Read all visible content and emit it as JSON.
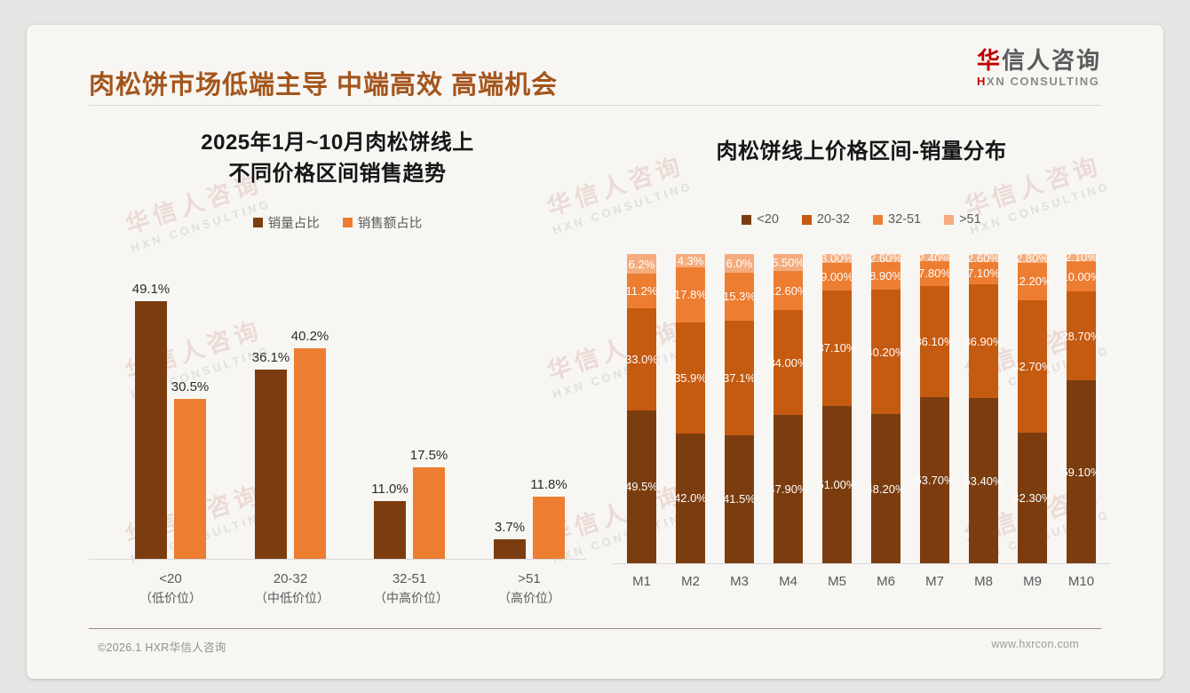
{
  "page": {
    "title": "肉松饼市场低端主导 中端高效 高端机会",
    "logo": {
      "cn_red": "华",
      "cn_rest": "信人咨询",
      "en_red": "H",
      "en_rest": "XN CONSULTING"
    },
    "watermark": {
      "line1": "华信人咨询",
      "line2": "HXN CONSULTING"
    },
    "footer": {
      "copyright": "©2026.1 HXR华信人咨询",
      "website": "www.hxrcon.com"
    }
  },
  "colors": {
    "title_accent": "#A4551C",
    "logo_red": "#C00000",
    "series_dark_brown": "#7B3D10",
    "series_burnt_orange": "#C55A11",
    "series_orange": "#ED7D31",
    "series_pale_orange": "#F4AC7E"
  },
  "chart_data": [
    {
      "type": "bar",
      "title_lines": [
        "2025年1月~10月肉松饼线上",
        "不同价格区间销售趋势"
      ],
      "categories": [
        [
          "<20",
          "（低价位）"
        ],
        [
          "20-32",
          "（中低价位）"
        ],
        [
          "32-51",
          "（中高价位）"
        ],
        [
          ">51",
          "（高价位）"
        ]
      ],
      "series": [
        {
          "name": "销量占比",
          "color": "#7B3D10",
          "values": [
            49.1,
            36.1,
            11.0,
            3.7
          ],
          "labels": [
            "49.1%",
            "36.1%",
            "11.0%",
            "3.7%"
          ]
        },
        {
          "name": "销售额占比",
          "color": "#ED7D31",
          "values": [
            30.5,
            40.2,
            17.5,
            11.8
          ],
          "labels": [
            "30.5%",
            "40.2%",
            "17.5%",
            "11.8%"
          ]
        }
      ],
      "ylim": [
        0,
        50
      ],
      "grid": false,
      "legend_position": "top"
    },
    {
      "type": "bar",
      "stacked": true,
      "title": "肉松饼线上价格区间-销量分布",
      "categories": [
        "M1",
        "M2",
        "M3",
        "M4",
        "M5",
        "M6",
        "M7",
        "M8",
        "M9",
        "M10"
      ],
      "series": [
        {
          "name": "<20",
          "color": "#7B3D10",
          "values": [
            49.5,
            42.0,
            41.5,
            47.9,
            51.0,
            48.2,
            53.7,
            53.4,
            42.3,
            59.1
          ],
          "labels": [
            "49.5%",
            "42.0%",
            "41.5%",
            "47.90%",
            "51.00%",
            "48.20%",
            "53.70%",
            "53.40%",
            "42.30%",
            "59.10%"
          ]
        },
        {
          "name": "20-32",
          "color": "#C55A11",
          "values": [
            33.0,
            35.9,
            37.1,
            34.0,
            37.1,
            40.2,
            36.1,
            36.9,
            42.7,
            28.7
          ],
          "labels": [
            "33.0%",
            "35.9%",
            "37.1%",
            "34.00%",
            "37.10%",
            "40.20%",
            "36.10%",
            "36.90%",
            "42.70%",
            "28.70%"
          ]
        },
        {
          "name": "32-51",
          "color": "#ED7D31",
          "values": [
            11.2,
            17.8,
            15.3,
            12.6,
            9.0,
            8.9,
            7.8,
            7.1,
            12.2,
            10.0
          ],
          "labels": [
            "11.2%",
            "17.8%",
            "15.3%",
            "12.60%",
            "9.00%",
            "8.90%",
            "7.80%",
            "7.10%",
            "12.20%",
            "10.00%"
          ]
        },
        {
          "name": ">51",
          "color": "#F4AC7E",
          "values": [
            6.2,
            4.3,
            6.0,
            5.5,
            3.0,
            2.6,
            2.4,
            2.6,
            2.8,
            2.1
          ],
          "labels": [
            "6.2%",
            "4.3%",
            "6.0%",
            "5.50%",
            "3.00%",
            "2.60%",
            "2.40%",
            "2.60%",
            "2.80%",
            "2.10%"
          ]
        }
      ],
      "ylim": [
        0,
        100
      ],
      "grid": false,
      "legend_position": "top"
    }
  ]
}
